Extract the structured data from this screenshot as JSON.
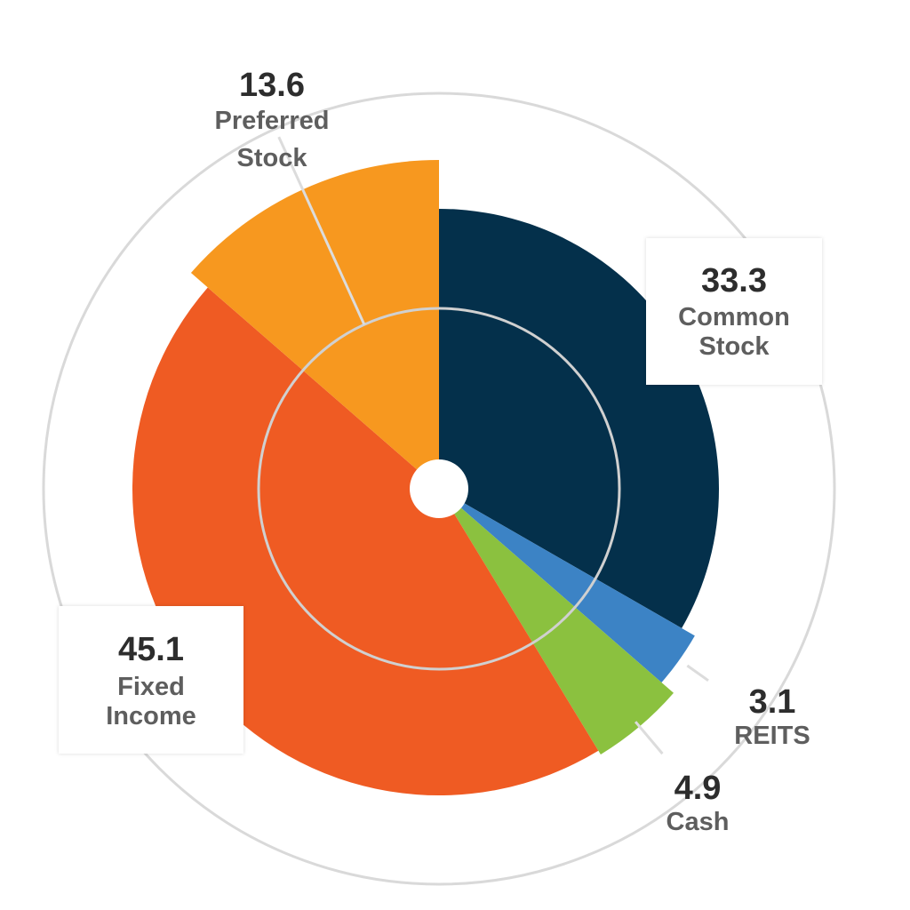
{
  "chart_data": {
    "type": "pie",
    "variant": "polar-area",
    "grid": true,
    "slices": [
      {
        "label_lines": [
          "Common",
          "Stock"
        ],
        "value": 33.3,
        "color": "#04304b"
      },
      {
        "label_lines": [
          "REITS"
        ],
        "value": 3.1,
        "color": "#3c83c5"
      },
      {
        "label_lines": [
          "Cash"
        ],
        "value": 4.9,
        "color": "#8bc13f"
      },
      {
        "label_lines": [
          "Fixed",
          "Income"
        ],
        "value": 45.1,
        "color": "#ef5b23"
      },
      {
        "label_lines": [
          "Preferred",
          "Stock"
        ],
        "value": 13.6,
        "color": "#f7981f"
      }
    ]
  }
}
